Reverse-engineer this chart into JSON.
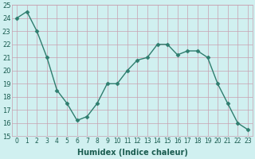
{
  "x": [
    0,
    1,
    2,
    3,
    4,
    5,
    6,
    7,
    8,
    9,
    10,
    11,
    12,
    13,
    14,
    15,
    16,
    17,
    18,
    19,
    20,
    21,
    22,
    23
  ],
  "y": [
    24.0,
    24.5,
    23.0,
    21.0,
    18.5,
    17.5,
    16.2,
    16.5,
    17.5,
    19.0,
    19.0,
    20.0,
    20.8,
    21.0,
    22.0,
    22.0,
    21.2,
    21.5,
    21.5,
    21.0,
    19.0,
    17.5,
    16.0,
    15.5
  ],
  "xlabel": "Humidex (Indice chaleur)",
  "ylim": [
    15,
    25
  ],
  "xlim": [
    -0.5,
    23.5
  ],
  "yticks": [
    15,
    16,
    17,
    18,
    19,
    20,
    21,
    22,
    23,
    24,
    25
  ],
  "xticks": [
    0,
    1,
    2,
    3,
    4,
    5,
    6,
    7,
    8,
    9,
    10,
    11,
    12,
    13,
    14,
    15,
    16,
    17,
    18,
    19,
    20,
    21,
    22,
    23
  ],
  "xtick_labels": [
    "0",
    "1",
    "2",
    "3",
    "4",
    "5",
    "6",
    "7",
    "8",
    "9",
    "10",
    "11",
    "12",
    "13",
    "14",
    "15",
    "16",
    "17",
    "18",
    "19",
    "20",
    "21",
    "22",
    "23"
  ],
  "line_color": "#2e7d6e",
  "marker": "D",
  "marker_size": 2.5,
  "bg_color": "#d0f0f0",
  "grid_color": "#c8a0b0",
  "line_width": 1.0,
  "xlabel_fontsize": 7,
  "ytick_fontsize": 6,
  "xtick_fontsize": 5.5
}
